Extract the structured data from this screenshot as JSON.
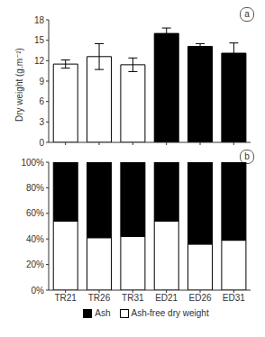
{
  "chart_data": [
    {
      "type": "bar",
      "title": "a",
      "categories": [
        "TR21",
        "TR26",
        "TR31",
        "ED21",
        "ED26",
        "ED31"
      ],
      "values": [
        11.5,
        12.6,
        11.4,
        16.0,
        14.1,
        13.1
      ],
      "errors": [
        0.6,
        1.9,
        1.0,
        0.8,
        0.4,
        1.5
      ],
      "colors": [
        "#ffffff",
        "#ffffff",
        "#ffffff",
        "#000000",
        "#000000",
        "#000000"
      ],
      "ylabel": "Dry weight (g.m⁻²)",
      "ylim": [
        0,
        18
      ],
      "yticks": [
        0,
        3,
        6,
        9,
        12,
        15,
        18
      ],
      "grid": false,
      "tick_labels": "y"
    },
    {
      "type": "bar",
      "title": "b",
      "stacked": true,
      "categories": [
        "TR21",
        "TR26",
        "TR31",
        "ED21",
        "ED26",
        "ED31"
      ],
      "series": [
        {
          "name": "Ash-free dry weight",
          "color": "#ffffff",
          "values": [
            54,
            41,
            42,
            54,
            36,
            39
          ]
        },
        {
          "name": "Ash",
          "color": "#000000",
          "values": [
            46,
            59,
            58,
            46,
            64,
            61
          ]
        }
      ],
      "ylim": [
        0,
        100
      ],
      "yticks": [
        {
          "value": 0,
          "label": "0%"
        },
        {
          "value": 20,
          "label": "20%"
        },
        {
          "value": 40,
          "label": "40%"
        },
        {
          "value": 60,
          "label": "60%"
        },
        {
          "value": 80,
          "label": "80%"
        },
        {
          "value": 100,
          "label": "100%"
        }
      ],
      "grid": false,
      "legend": "bottom"
    }
  ]
}
